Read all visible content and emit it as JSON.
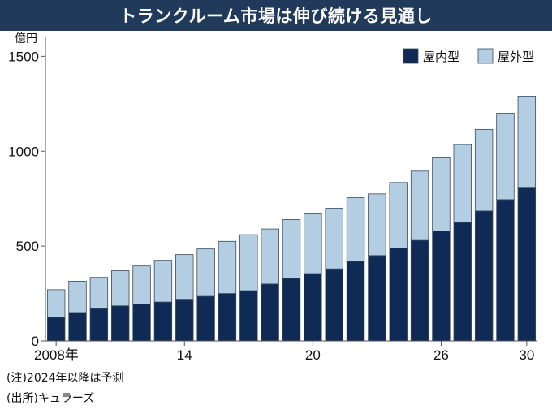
{
  "title": "トランクルーム市場は伸び続ける見通し",
  "notes": [
    "(注)2024年以降は予測",
    "(出所)キュラーズ"
  ],
  "colors": {
    "title_bg": "#213a5c",
    "indoor": "#0f2a55",
    "outdoor": "#b3cde3",
    "axis": "#555555"
  },
  "chart_data": {
    "type": "bar",
    "stacked": true,
    "unit_label": "億円",
    "categories": [
      "2008",
      "2009",
      "2010",
      "2011",
      "2012",
      "2013",
      "2014",
      "2015",
      "2016",
      "2017",
      "2018",
      "2019",
      "2020",
      "2021",
      "2022",
      "2023",
      "2024",
      "2025",
      "2026",
      "2027",
      "2028",
      "2029",
      "2030"
    ],
    "x_tick_labels": [
      {
        "category": "2008",
        "label": "2008年"
      },
      {
        "category": "2014",
        "label": "14"
      },
      {
        "category": "2020",
        "label": "20"
      },
      {
        "category": "2026",
        "label": "26"
      },
      {
        "category": "2030",
        "label": "30"
      }
    ],
    "series": [
      {
        "name": "屋内型",
        "values": [
          125,
          150,
          170,
          185,
          195,
          205,
          220,
          235,
          250,
          265,
          300,
          330,
          355,
          380,
          420,
          450,
          490,
          530,
          580,
          625,
          685,
          745,
          810
        ]
      },
      {
        "name": "屋外型",
        "values": [
          145,
          165,
          165,
          185,
          200,
          220,
          235,
          250,
          275,
          295,
          290,
          310,
          315,
          320,
          335,
          325,
          345,
          365,
          385,
          410,
          430,
          455,
          480
        ]
      }
    ],
    "ylim": [
      0,
      1600
    ],
    "y_ticks": [
      0,
      500,
      1000,
      1500
    ],
    "legend_position": "top-right",
    "grid": false
  }
}
